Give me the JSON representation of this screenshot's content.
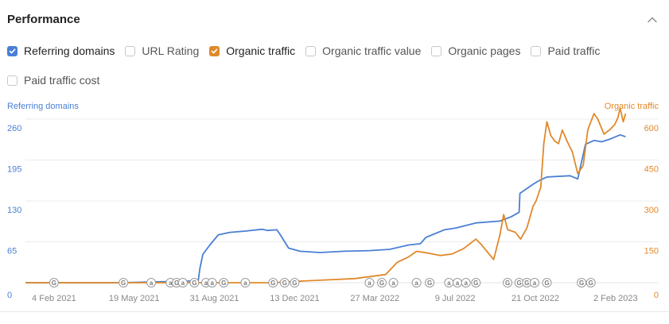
{
  "header": {
    "title": "Performance"
  },
  "metrics": [
    {
      "label": "Referring domains",
      "checked": true,
      "color": "#4a7fd4"
    },
    {
      "label": "URL Rating",
      "checked": false
    },
    {
      "label": "Organic traffic",
      "checked": true,
      "color": "#e0892a"
    },
    {
      "label": "Organic traffic value",
      "checked": false
    },
    {
      "label": "Organic pages",
      "checked": false
    },
    {
      "label": "Paid traffic",
      "checked": false
    },
    {
      "label": "Paid traffic cost",
      "checked": false
    }
  ],
  "chart_data": {
    "type": "line",
    "grid": true,
    "x_domain": [
      "2020-12-29",
      "2023-03-01"
    ],
    "x_ticks": [
      {
        "date": "2021-02-04",
        "label": "4 Feb 2021"
      },
      {
        "date": "2021-05-19",
        "label": "19 May 2021"
      },
      {
        "date": "2021-08-31",
        "label": "31 Aug 2021"
      },
      {
        "date": "2021-12-13",
        "label": "13 Dec 2021"
      },
      {
        "date": "2022-03-27",
        "label": "27 Mar 2022"
      },
      {
        "date": "2022-07-09",
        "label": "9 Jul 2022"
      },
      {
        "date": "2022-10-21",
        "label": "21 Oct 2022"
      },
      {
        "date": "2023-02-02",
        "label": "2 Feb 2023"
      }
    ],
    "y_left": {
      "label": "Referring domains",
      "ticks": [
        "0",
        "65",
        "130",
        "195",
        "260"
      ],
      "range": [
        0,
        260
      ],
      "color": "#4a7fd4"
    },
    "y_right": {
      "label": "Organic traffic",
      "ticks": [
        "0",
        "150",
        "300",
        "450",
        "600"
      ],
      "range": [
        0,
        600
      ],
      "color": "#e0892a"
    },
    "series": [
      {
        "name": "Referring domains",
        "axis": "left",
        "color": "#4a7fd4",
        "points": [
          [
            "2020-12-29",
            0
          ],
          [
            "2021-05-01",
            0
          ],
          [
            "2021-07-10",
            2
          ],
          [
            "2021-08-10",
            3
          ],
          [
            "2021-08-12",
            22
          ],
          [
            "2021-08-16",
            45
          ],
          [
            "2021-08-25",
            60
          ],
          [
            "2021-09-05",
            76
          ],
          [
            "2021-09-20",
            80
          ],
          [
            "2021-10-10",
            82
          ],
          [
            "2021-11-01",
            85
          ],
          [
            "2021-11-08",
            83
          ],
          [
            "2021-11-20",
            84
          ],
          [
            "2021-11-25",
            75
          ],
          [
            "2021-12-05",
            55
          ],
          [
            "2021-12-20",
            50
          ],
          [
            "2022-01-15",
            48
          ],
          [
            "2022-02-15",
            50
          ],
          [
            "2022-03-20",
            51
          ],
          [
            "2022-04-15",
            53
          ],
          [
            "2022-05-10",
            60
          ],
          [
            "2022-05-25",
            62
          ],
          [
            "2022-06-01",
            72
          ],
          [
            "2022-06-25",
            84
          ],
          [
            "2022-07-10",
            87
          ],
          [
            "2022-08-05",
            95
          ],
          [
            "2022-09-05",
            98
          ],
          [
            "2022-09-20",
            105
          ],
          [
            "2022-09-30",
            112
          ],
          [
            "2022-10-01",
            142
          ],
          [
            "2022-10-20",
            158
          ],
          [
            "2022-10-27",
            163
          ],
          [
            "2022-11-05",
            168
          ],
          [
            "2022-12-05",
            170
          ],
          [
            "2022-12-15",
            165
          ],
          [
            "2022-12-25",
            220
          ],
          [
            "2023-01-05",
            226
          ],
          [
            "2023-01-15",
            224
          ],
          [
            "2023-01-25",
            228
          ],
          [
            "2023-02-08",
            235
          ],
          [
            "2023-02-15",
            232
          ]
        ]
      },
      {
        "name": "Organic traffic",
        "axis": "right",
        "color": "#e0892a",
        "points": [
          [
            "2020-12-29",
            0
          ],
          [
            "2021-11-15",
            0
          ],
          [
            "2021-12-15",
            5
          ],
          [
            "2022-01-20",
            10
          ],
          [
            "2022-03-01",
            15
          ],
          [
            "2022-04-10",
            30
          ],
          [
            "2022-04-25",
            75
          ],
          [
            "2022-05-10",
            95
          ],
          [
            "2022-05-20",
            115
          ],
          [
            "2022-06-01",
            110
          ],
          [
            "2022-06-20",
            100
          ],
          [
            "2022-07-05",
            105
          ],
          [
            "2022-07-20",
            125
          ],
          [
            "2022-08-05",
            160
          ],
          [
            "2022-08-12",
            140
          ],
          [
            "2022-08-22",
            105
          ],
          [
            "2022-08-28",
            85
          ],
          [
            "2022-09-05",
            175
          ],
          [
            "2022-09-10",
            250
          ],
          [
            "2022-09-15",
            195
          ],
          [
            "2022-09-25",
            185
          ],
          [
            "2022-10-02",
            160
          ],
          [
            "2022-10-10",
            200
          ],
          [
            "2022-10-18",
            280
          ],
          [
            "2022-10-22",
            300
          ],
          [
            "2022-10-28",
            350
          ],
          [
            "2022-11-01",
            510
          ],
          [
            "2022-11-05",
            590
          ],
          [
            "2022-11-10",
            540
          ],
          [
            "2022-11-15",
            520
          ],
          [
            "2022-11-20",
            510
          ],
          [
            "2022-11-25",
            560
          ],
          [
            "2022-12-01",
            520
          ],
          [
            "2022-12-08",
            480
          ],
          [
            "2022-12-15",
            400
          ],
          [
            "2022-12-22",
            430
          ],
          [
            "2022-12-28",
            560
          ],
          [
            "2023-01-05",
            620
          ],
          [
            "2023-01-10",
            600
          ],
          [
            "2023-01-18",
            545
          ],
          [
            "2023-01-25",
            560
          ],
          [
            "2023-02-01",
            580
          ],
          [
            "2023-02-05",
            605
          ],
          [
            "2023-02-08",
            640
          ],
          [
            "2023-02-12",
            590
          ],
          [
            "2023-02-15",
            620
          ]
        ]
      }
    ],
    "annotations": [
      {
        "date": "2021-02-04",
        "mark": "G"
      },
      {
        "date": "2021-05-05",
        "mark": "G"
      },
      {
        "date": "2021-06-10",
        "mark": "a"
      },
      {
        "date": "2021-07-05",
        "mark": "a"
      },
      {
        "date": "2021-07-13",
        "mark": "G"
      },
      {
        "date": "2021-07-21",
        "mark": "a"
      },
      {
        "date": "2021-08-05",
        "mark": "G"
      },
      {
        "date": "2021-08-20",
        "mark": "a"
      },
      {
        "date": "2021-08-28",
        "mark": "a"
      },
      {
        "date": "2021-09-12",
        "mark": "G"
      },
      {
        "date": "2021-10-10",
        "mark": "a"
      },
      {
        "date": "2021-11-15",
        "mark": "G"
      },
      {
        "date": "2021-11-30",
        "mark": "G"
      },
      {
        "date": "2021-12-13",
        "mark": "G"
      },
      {
        "date": "2022-03-20",
        "mark": "a"
      },
      {
        "date": "2022-04-05",
        "mark": "G"
      },
      {
        "date": "2022-04-20",
        "mark": "a"
      },
      {
        "date": "2022-05-20",
        "mark": "a"
      },
      {
        "date": "2022-06-06",
        "mark": "G"
      },
      {
        "date": "2022-07-01",
        "mark": "a"
      },
      {
        "date": "2022-07-12",
        "mark": "a"
      },
      {
        "date": "2022-07-23",
        "mark": "a"
      },
      {
        "date": "2022-08-05",
        "mark": "G"
      },
      {
        "date": "2022-09-15",
        "mark": "G"
      },
      {
        "date": "2022-09-30",
        "mark": "G"
      },
      {
        "date": "2022-10-10",
        "mark": "G"
      },
      {
        "date": "2022-10-20",
        "mark": "a"
      },
      {
        "date": "2022-11-05",
        "mark": "G"
      },
      {
        "date": "2022-12-20",
        "mark": "G"
      },
      {
        "date": "2023-01-01",
        "mark": "G"
      }
    ]
  }
}
